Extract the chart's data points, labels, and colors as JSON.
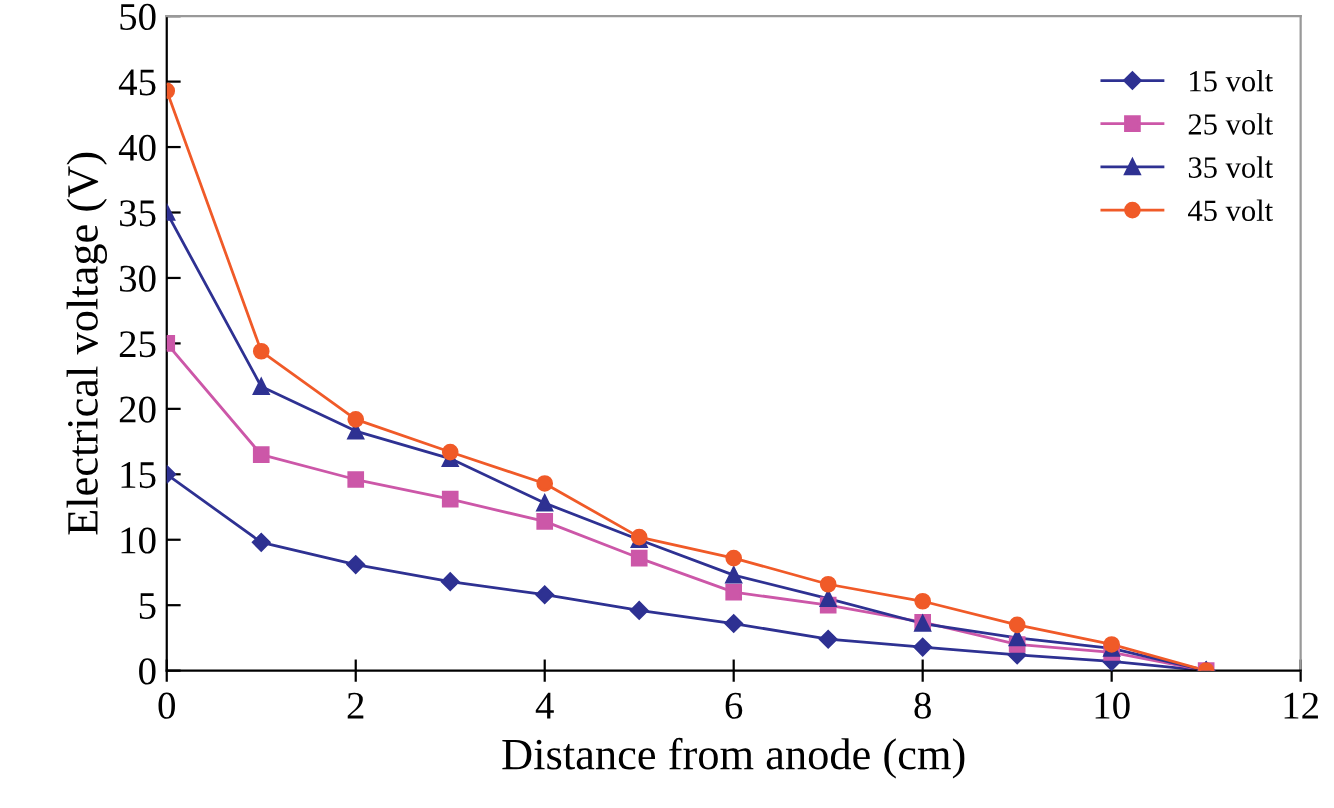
{
  "chart_data": {
    "type": "line",
    "xlabel": "Distance from anode (cm)",
    "ylabel": "Electrical voltage (V)",
    "x": [
      0,
      1,
      2,
      3,
      4,
      5,
      6,
      7,
      8,
      9,
      10,
      11
    ],
    "series": [
      {
        "name": "15 volt",
        "color": "#2e3192",
        "marker": "diamond",
        "values": [
          15,
          9.8,
          8.1,
          6.8,
          5.8,
          4.6,
          3.6,
          2.4,
          1.8,
          1.2,
          0.7,
          0
        ]
      },
      {
        "name": "25 volt",
        "color": "#cc57a8",
        "marker": "square",
        "values": [
          25,
          16.5,
          14.6,
          13.1,
          11.4,
          8.6,
          6.0,
          5.0,
          3.7,
          2.0,
          1.4,
          0
        ]
      },
      {
        "name": "35 volt",
        "color": "#2e3192",
        "marker": "triangle",
        "values": [
          35,
          21.7,
          18.3,
          16.2,
          12.8,
          10.0,
          7.3,
          5.5,
          3.6,
          2.5,
          1.7,
          0
        ]
      },
      {
        "name": "45 volt",
        "color": "#f05a28",
        "marker": "circle",
        "values": [
          44.3,
          24.4,
          19.2,
          16.7,
          14.3,
          10.2,
          8.6,
          6.6,
          5.3,
          3.5,
          2.0,
          0
        ]
      }
    ],
    "xlim": [
      0,
      12
    ],
    "xticks": [
      0,
      2,
      4,
      6,
      8,
      10,
      12
    ],
    "ylim": [
      0,
      50
    ],
    "yticks": [
      0,
      5,
      10,
      15,
      20,
      25,
      30,
      35,
      40,
      45,
      50
    ],
    "grid": false,
    "legend": "top right",
    "line_style": "solid"
  }
}
